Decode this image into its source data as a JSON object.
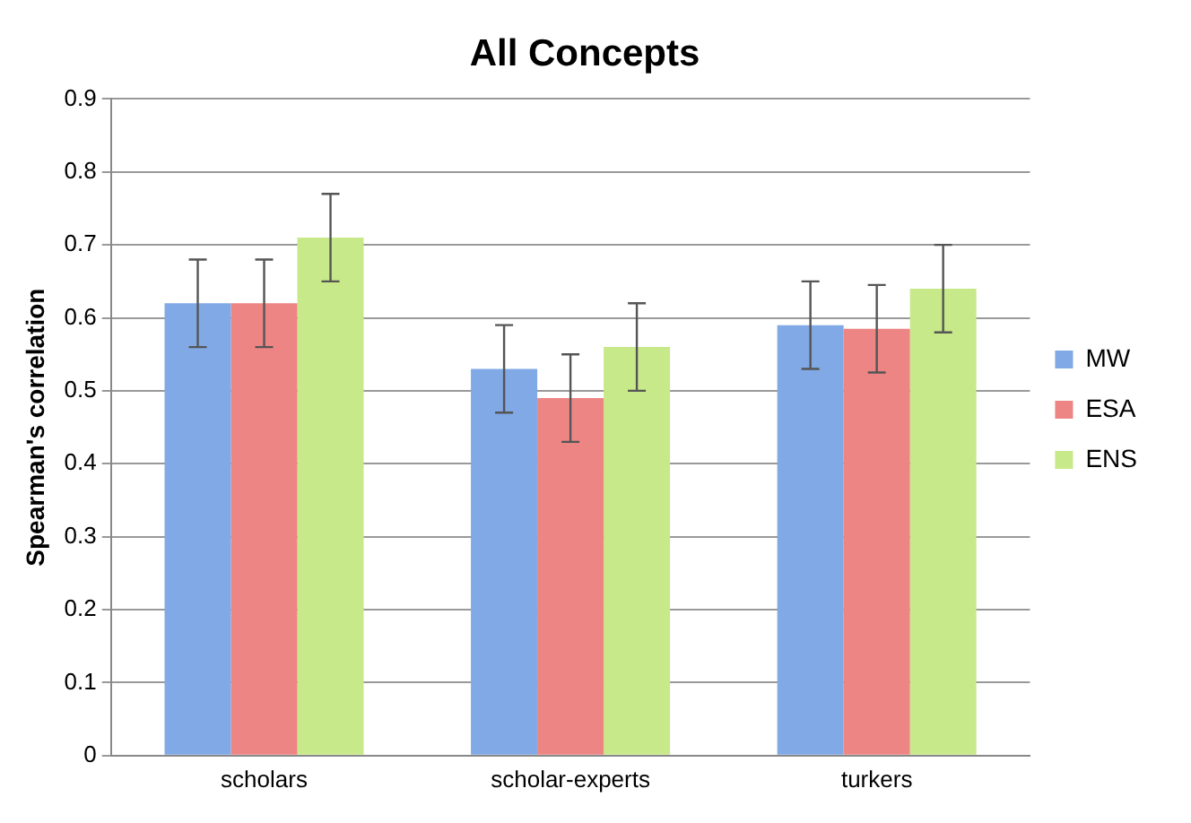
{
  "chart_data": {
    "type": "bar",
    "title": "All Concepts",
    "ylabel": "Spearman's correlation",
    "categories": [
      "scholars",
      "scholar-experts",
      "turkers"
    ],
    "series": [
      {
        "name": "MW",
        "color": "#80a9e6",
        "values": [
          0.62,
          0.53,
          0.59
        ],
        "errors": [
          0.06,
          0.06,
          0.06
        ]
      },
      {
        "name": "ESA",
        "color": "#ee8585",
        "values": [
          0.62,
          0.49,
          0.585
        ],
        "errors": [
          0.06,
          0.06,
          0.06
        ]
      },
      {
        "name": "ENS",
        "color": "#c8e98a",
        "values": [
          0.71,
          0.56,
          0.64
        ],
        "errors": [
          0.06,
          0.06,
          0.06
        ]
      }
    ],
    "ylim": [
      0,
      0.9
    ],
    "yticks": [
      0,
      0.1,
      0.2,
      0.3,
      0.4,
      0.5,
      0.6,
      0.7,
      0.8,
      0.9
    ],
    "grid": "y",
    "legend": "right"
  }
}
